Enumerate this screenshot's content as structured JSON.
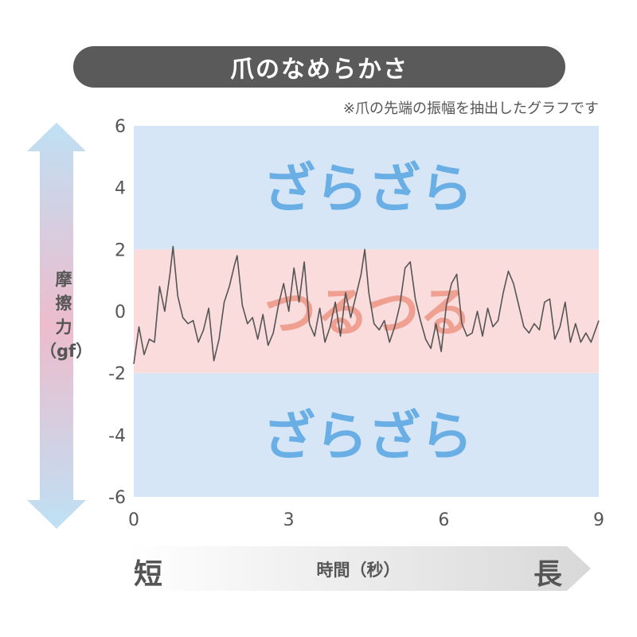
{
  "header": {
    "title": "爪のなめらかさ",
    "note": "※爪の先端の振幅を抽出したグラフです"
  },
  "axes": {
    "y_label_lines": [
      "摩",
      "擦",
      "力",
      "（gf）"
    ],
    "x_label": "時間（秒）",
    "x_short": "短",
    "x_long": "長"
  },
  "bands": {
    "rough_label": "ざらざら",
    "smooth_label": "つるつる"
  },
  "colors": {
    "rough_band": "#d6e6f6",
    "smooth_band": "#fadcdc",
    "rough_text": "#6aaee6",
    "smooth_text": "#f0a090",
    "line": "#555555",
    "title_bg": "#5a5a5a"
  },
  "chart_data": {
    "type": "line",
    "title": "爪のなめらかさ",
    "xlabel": "時間（秒）",
    "ylabel": "摩擦力（gf）",
    "xlim": [
      0,
      9
    ],
    "ylim": [
      -6,
      6
    ],
    "xticks": [
      0,
      3,
      6,
      9
    ],
    "yticks": [
      6,
      4,
      2,
      0,
      -2,
      -4,
      -6
    ],
    "regions": [
      {
        "label": "ざらざら",
        "from": 2,
        "to": 6
      },
      {
        "label": "つるつる",
        "from": -2,
        "to": 2
      },
      {
        "label": "ざらざら",
        "from": -6,
        "to": -2
      }
    ],
    "series": [
      {
        "x": [
          0,
          0.1,
          0.2,
          0.3,
          0.4,
          0.5,
          0.6,
          0.7,
          0.76,
          0.85,
          0.95,
          1.05,
          1.15,
          1.25,
          1.35,
          1.45,
          1.55,
          1.65,
          1.75,
          1.85,
          1.95,
          2.0,
          2.1,
          2.2,
          2.3,
          2.4,
          2.5,
          2.6,
          2.7,
          2.8,
          2.9,
          3.0,
          3.1,
          3.2,
          3.3,
          3.4,
          3.5,
          3.6,
          3.7,
          3.8,
          3.9,
          4.0,
          4.1,
          4.2,
          4.3,
          4.4,
          4.47,
          4.55,
          4.65,
          4.75,
          4.85,
          4.95,
          5.05,
          5.15,
          5.25,
          5.35,
          5.45,
          5.55,
          5.65,
          5.75,
          5.85,
          5.95,
          6.05,
          6.15,
          6.25,
          6.35,
          6.45,
          6.55,
          6.65,
          6.75,
          6.85,
          6.95,
          7.05,
          7.15,
          7.25,
          7.35,
          7.45,
          7.55,
          7.65,
          7.75,
          7.85,
          7.95,
          8.05,
          8.15,
          8.25,
          8.35,
          8.45,
          8.55,
          8.65,
          8.75,
          8.85,
          9.0
        ],
        "y": [
          -1.7,
          -0.5,
          -1.4,
          -0.9,
          -1.0,
          0.8,
          0.0,
          1.2,
          2.1,
          0.5,
          -0.2,
          -0.4,
          -0.3,
          -1.0,
          -0.6,
          0.1,
          -1.6,
          -0.9,
          0.3,
          0.8,
          1.5,
          1.8,
          0.2,
          -0.4,
          -0.2,
          -0.9,
          -0.1,
          -1.1,
          -0.7,
          0.2,
          0.9,
          0.0,
          1.4,
          0.3,
          1.6,
          -0.4,
          -0.8,
          0.1,
          -1.0,
          -0.5,
          0.3,
          -0.8,
          0.6,
          -0.2,
          0.5,
          1.2,
          2.0,
          0.6,
          -0.4,
          -0.6,
          -0.3,
          -1.0,
          -0.5,
          0.2,
          1.4,
          1.6,
          0.4,
          -0.3,
          -0.9,
          -1.2,
          -0.4,
          -1.3,
          0.2,
          0.9,
          1.2,
          -0.4,
          -0.8,
          -0.7,
          0.0,
          -0.8,
          0.1,
          -0.5,
          -0.3,
          0.6,
          1.3,
          0.9,
          0.2,
          -0.5,
          -0.7,
          -0.4,
          -0.6,
          0.3,
          0.4,
          -0.9,
          -0.5,
          0.3,
          -1.0,
          -0.4,
          -1.0,
          -0.7,
          -1.0,
          -0.3
        ]
      }
    ]
  }
}
